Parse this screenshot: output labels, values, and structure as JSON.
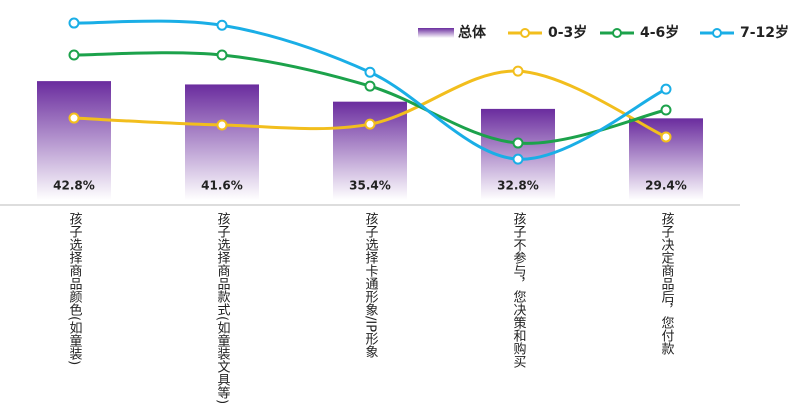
{
  "chart_data": {
    "type": "bar",
    "categories": [
      "孩子选择商品颜色(如童装)",
      "孩子选择商品款式(如童装文具等)",
      "孩子选择卡通形象/IP形象",
      "孩子不参与，您决策和购买",
      "孩子决定商品后，您付款"
    ],
    "ylim": [
      0,
      72
    ],
    "legend": "top-right",
    "series": [
      {
        "name": "总体",
        "type": "bar",
        "color": "#6a2c9e",
        "values": [
          42.8,
          41.6,
          35.4,
          32.8,
          29.4
        ],
        "value_labels": [
          "42.8%",
          "41.6%",
          "35.4%",
          "32.8%",
          "29.4%"
        ]
      },
      {
        "name": "0-3岁",
        "type": "line",
        "color": "#f2be1d",
        "values": [
          29.5,
          27.0,
          27.3,
          46.4,
          22.7
        ]
      },
      {
        "name": "4-6岁",
        "type": "line",
        "color": "#1ca24b",
        "values": [
          52.2,
          52.2,
          41.0,
          20.5,
          32.4
        ]
      },
      {
        "name": "7-12岁",
        "type": "line",
        "color": "#1aaee6",
        "values": [
          63.7,
          62.9,
          46.0,
          14.7,
          39.9
        ]
      }
    ]
  }
}
